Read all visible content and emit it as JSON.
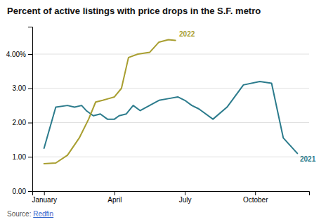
{
  "chart_data": {
    "type": "line",
    "title": "Percent of active listings with price drops in the S.F. metro",
    "source_label": "Source: ",
    "source_link": "Redfin",
    "xlim": [
      0.5,
      12.3
    ],
    "xticks": [
      {
        "value": 1,
        "label": "January"
      },
      {
        "value": 4,
        "label": "April"
      },
      {
        "value": 7,
        "label": "July"
      },
      {
        "value": 10,
        "label": "October"
      }
    ],
    "ylim": [
      0.0,
      4.8
    ],
    "yticks": [
      {
        "value": 0.0,
        "label": "0.00"
      },
      {
        "value": 1.0,
        "label": "1.00"
      },
      {
        "value": 2.0,
        "label": "2.00"
      },
      {
        "value": 3.0,
        "label": "3.00"
      },
      {
        "value": 4.0,
        "label": "4.00%"
      }
    ],
    "grid": true,
    "series": [
      {
        "color": "#2b7b8c",
        "x": [
          1,
          1.5,
          2.0,
          2.3,
          2.6,
          2.8,
          3.1,
          3.4,
          3.7,
          4.0,
          4.2,
          4.5,
          4.8,
          5.1,
          5.5,
          5.9,
          6.3,
          6.7,
          7.0,
          7.3,
          7.6,
          8.2,
          8.8,
          9.5,
          10.2,
          10.7,
          11.2,
          11.8
        ],
        "values": [
          1.25,
          2.45,
          2.5,
          2.45,
          2.5,
          2.35,
          2.2,
          2.25,
          2.1,
          2.1,
          2.2,
          2.25,
          2.5,
          2.35,
          2.5,
          2.65,
          2.7,
          2.75,
          2.65,
          2.5,
          2.4,
          2.1,
          2.45,
          3.1,
          3.2,
          3.15,
          1.55,
          1.1
        ]
      },
      {
        "color": "#a89e30",
        "x": [
          1,
          1.5,
          2.0,
          2.5,
          2.9,
          3.2,
          3.5,
          3.75,
          4.0,
          4.3,
          4.6,
          5.0,
          5.5,
          5.9,
          6.3,
          6.6
        ],
        "values": [
          0.8,
          0.82,
          1.05,
          1.55,
          2.1,
          2.6,
          2.65,
          2.7,
          2.75,
          3.0,
          3.9,
          4.0,
          4.05,
          4.35,
          4.42,
          4.4
        ]
      }
    ],
    "annotations": [
      {
        "text": "2022",
        "x": 6.7,
        "y": 4.42,
        "color": "#a89e30"
      },
      {
        "text": "2021",
        "x": 11.85,
        "y": 1.1,
        "color": "#2b7b8c"
      }
    ]
  }
}
